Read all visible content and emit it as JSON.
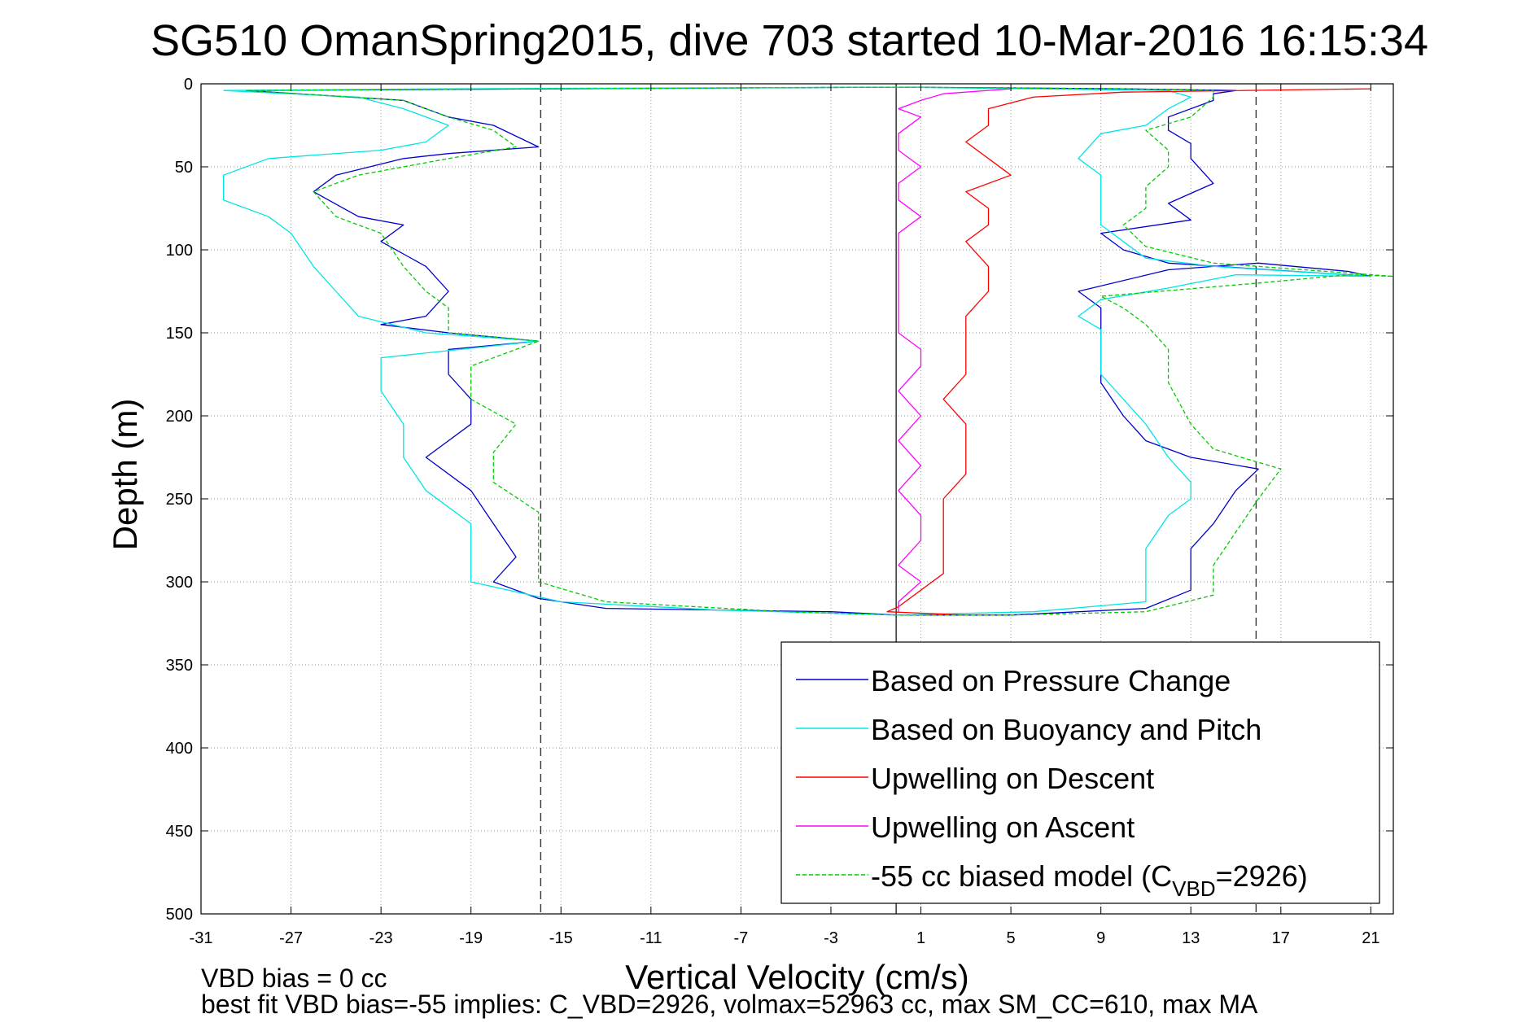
{
  "chart_data": {
    "type": "line",
    "title": "SG510 OmanSpring2015, dive 703 started 10-Mar-2016 16:15:34",
    "xlabel": "Vertical Velocity (cm/s)",
    "ylabel": "Depth (m)",
    "xlim": [
      -31,
      22
    ],
    "ylim": [
      500,
      0
    ],
    "xticks": [
      -31,
      -27,
      -23,
      -19,
      -15,
      -11,
      -7,
      -3,
      1,
      5,
      9,
      13,
      17,
      21
    ],
    "yticks": [
      0,
      50,
      100,
      150,
      200,
      250,
      300,
      350,
      400,
      450,
      500
    ],
    "grid": true,
    "legend_position": "bottom-right",
    "reference_lines": {
      "vertical_solid": [
        -0.1
      ],
      "vertical_dashed": [
        -15.9,
        15.9
      ]
    },
    "series": [
      {
        "name": "Based on Pressure Change",
        "color": "#0000cc",
        "style": "solid",
        "points": [
          [
            -29,
            4
          ],
          [
            -22,
            10
          ],
          [
            -20,
            20
          ],
          [
            -18,
            25
          ],
          [
            -16,
            38
          ],
          [
            -20,
            42
          ],
          [
            -22,
            45
          ],
          [
            -25,
            55
          ],
          [
            -26,
            65
          ],
          [
            -24,
            80
          ],
          [
            -22,
            85
          ],
          [
            -23,
            95
          ],
          [
            -21,
            110
          ],
          [
            -20,
            125
          ],
          [
            -21,
            140
          ],
          [
            -23,
            145
          ],
          [
            -20,
            150
          ],
          [
            -16,
            155
          ],
          [
            -20,
            160
          ],
          [
            -20,
            175
          ],
          [
            -19,
            190
          ],
          [
            -19,
            205
          ],
          [
            -21,
            225
          ],
          [
            -19,
            245
          ],
          [
            -18,
            265
          ],
          [
            -17,
            285
          ],
          [
            -18,
            300
          ],
          [
            -16,
            310
          ],
          [
            -13,
            316
          ],
          [
            -3,
            318
          ],
          [
            0,
            320
          ],
          [
            5,
            320
          ],
          [
            11,
            316
          ],
          [
            13,
            305
          ],
          [
            13,
            280
          ],
          [
            14,
            265
          ],
          [
            15,
            245
          ],
          [
            16,
            232
          ],
          [
            13,
            225
          ],
          [
            11,
            215
          ],
          [
            10,
            200
          ],
          [
            9,
            180
          ],
          [
            9,
            160
          ],
          [
            9,
            145
          ],
          [
            9,
            135
          ],
          [
            8,
            125
          ],
          [
            12,
            112
          ],
          [
            16,
            108
          ],
          [
            20,
            113
          ],
          [
            21,
            116
          ],
          [
            12,
            108
          ],
          [
            10,
            100
          ],
          [
            9,
            90
          ],
          [
            13,
            82
          ],
          [
            12,
            72
          ],
          [
            14,
            60
          ],
          [
            13,
            45
          ],
          [
            13,
            36
          ],
          [
            12,
            28
          ],
          [
            12,
            20
          ],
          [
            14,
            10
          ],
          [
            14,
            6
          ],
          [
            15,
            4
          ],
          [
            10,
            3
          ],
          [
            0,
            2
          ],
          [
            -15,
            3
          ],
          [
            -29,
            4
          ]
        ]
      },
      {
        "name": "Based on Buoyancy and Pitch",
        "color": "#00e5e5",
        "style": "solid",
        "points": [
          [
            -30,
            4
          ],
          [
            -24,
            8
          ],
          [
            -22,
            15
          ],
          [
            -20,
            25
          ],
          [
            -21,
            35
          ],
          [
            -23,
            40
          ],
          [
            -28,
            45
          ],
          [
            -30,
            55
          ],
          [
            -30,
            70
          ],
          [
            -28,
            80
          ],
          [
            -27,
            90
          ],
          [
            -26,
            110
          ],
          [
            -25,
            125
          ],
          [
            -24,
            140
          ],
          [
            -21,
            150
          ],
          [
            -16,
            155
          ],
          [
            -23,
            165
          ],
          [
            -23,
            185
          ],
          [
            -22,
            205
          ],
          [
            -22,
            225
          ],
          [
            -21,
            245
          ],
          [
            -19,
            265
          ],
          [
            -19,
            285
          ],
          [
            -19,
            300
          ],
          [
            -15,
            312
          ],
          [
            -8,
            317
          ],
          [
            0,
            320
          ],
          [
            6,
            318
          ],
          [
            11,
            312
          ],
          [
            11,
            300
          ],
          [
            11,
            280
          ],
          [
            12,
            260
          ],
          [
            13,
            250
          ],
          [
            13,
            240
          ],
          [
            12,
            225
          ],
          [
            11,
            205
          ],
          [
            10,
            190
          ],
          [
            9,
            175
          ],
          [
            9,
            160
          ],
          [
            9,
            148
          ],
          [
            8,
            140
          ],
          [
            9,
            130
          ],
          [
            12,
            123
          ],
          [
            15,
            115
          ],
          [
            21,
            116
          ],
          [
            14,
            110
          ],
          [
            11,
            105
          ],
          [
            10,
            95
          ],
          [
            9,
            85
          ],
          [
            9,
            70
          ],
          [
            9,
            55
          ],
          [
            8,
            45
          ],
          [
            9,
            30
          ],
          [
            11,
            25
          ],
          [
            12,
            15
          ],
          [
            13,
            8
          ],
          [
            12,
            4
          ],
          [
            0,
            2
          ],
          [
            -20,
            3
          ],
          [
            -30,
            4
          ]
        ]
      },
      {
        "name": "Upwelling on Descent",
        "color": "#ff0000",
        "style": "solid",
        "points": [
          [
            21,
            3
          ],
          [
            10,
            5
          ],
          [
            6,
            8
          ],
          [
            4,
            15
          ],
          [
            4,
            25
          ],
          [
            3,
            35
          ],
          [
            4,
            45
          ],
          [
            5,
            55
          ],
          [
            3,
            65
          ],
          [
            4,
            75
          ],
          [
            4,
            85
          ],
          [
            3,
            95
          ],
          [
            4,
            110
          ],
          [
            4,
            125
          ],
          [
            3,
            140
          ],
          [
            3,
            150
          ],
          [
            3,
            160
          ],
          [
            3,
            175
          ],
          [
            2,
            190
          ],
          [
            3,
            205
          ],
          [
            3,
            220
          ],
          [
            3,
            235
          ],
          [
            2,
            250
          ],
          [
            2,
            265
          ],
          [
            2,
            280
          ],
          [
            2,
            295
          ],
          [
            1,
            305
          ],
          [
            0,
            315
          ],
          [
            -0.5,
            318
          ],
          [
            3,
            320
          ]
        ]
      },
      {
        "name": "Upwelling on Ascent",
        "color": "#ff00ff",
        "style": "solid",
        "points": [
          [
            5,
            3
          ],
          [
            2,
            6
          ],
          [
            1,
            10
          ],
          [
            0,
            15
          ],
          [
            1,
            20
          ],
          [
            0,
            30
          ],
          [
            0,
            40
          ],
          [
            1,
            50
          ],
          [
            0,
            60
          ],
          [
            0,
            70
          ],
          [
            1,
            80
          ],
          [
            0,
            90
          ],
          [
            0,
            100
          ],
          [
            0,
            110
          ],
          [
            0,
            125
          ],
          [
            0,
            140
          ],
          [
            0,
            150
          ],
          [
            1,
            160
          ],
          [
            1,
            170
          ],
          [
            0,
            185
          ],
          [
            1,
            200
          ],
          [
            0,
            215
          ],
          [
            1,
            230
          ],
          [
            0,
            245
          ],
          [
            1,
            260
          ],
          [
            1,
            275
          ],
          [
            0,
            290
          ],
          [
            1,
            300
          ],
          [
            0,
            312
          ],
          [
            0,
            318
          ]
        ]
      },
      {
        "name": "-55 cc biased model (C_VBD=2926)",
        "color": "#00cc00",
        "style": "dashed",
        "points": [
          [
            -29,
            4
          ],
          [
            -22,
            10
          ],
          [
            -20,
            20
          ],
          [
            -18,
            28
          ],
          [
            -17,
            38
          ],
          [
            -20,
            45
          ],
          [
            -24,
            55
          ],
          [
            -26,
            65
          ],
          [
            -25,
            80
          ],
          [
            -23,
            90
          ],
          [
            -22,
            110
          ],
          [
            -21,
            125
          ],
          [
            -20,
            135
          ],
          [
            -20,
            150
          ],
          [
            -16,
            155
          ],
          [
            -19,
            170
          ],
          [
            -19,
            190
          ],
          [
            -17,
            205
          ],
          [
            -18,
            222
          ],
          [
            -18,
            240
          ],
          [
            -16,
            258
          ],
          [
            -16,
            280
          ],
          [
            -16,
            300
          ],
          [
            -13,
            312
          ],
          [
            -5,
            318
          ],
          [
            0,
            320
          ],
          [
            5,
            320
          ],
          [
            11,
            318
          ],
          [
            14,
            308
          ],
          [
            14,
            290
          ],
          [
            15,
            270
          ],
          [
            16,
            250
          ],
          [
            17,
            232
          ],
          [
            14,
            220
          ],
          [
            13,
            205
          ],
          [
            12,
            180
          ],
          [
            12,
            160
          ],
          [
            11,
            145
          ],
          [
            10,
            135
          ],
          [
            9,
            128
          ],
          [
            16,
            120
          ],
          [
            20,
            115
          ],
          [
            22,
            116
          ],
          [
            14,
            108
          ],
          [
            11,
            98
          ],
          [
            10,
            85
          ],
          [
            11,
            75
          ],
          [
            11,
            62
          ],
          [
            12,
            50
          ],
          [
            12,
            40
          ],
          [
            11,
            28
          ],
          [
            13,
            20
          ],
          [
            14,
            8
          ],
          [
            14,
            4
          ],
          [
            10,
            3
          ],
          [
            0,
            2
          ],
          [
            -15,
            3
          ],
          [
            -29,
            4
          ]
        ]
      }
    ],
    "legend": [
      {
        "label": "Based on Pressure Change",
        "color": "#0000cc",
        "dashed": false
      },
      {
        "label": "Based on Buoyancy and Pitch",
        "color": "#00e5e5",
        "dashed": false
      },
      {
        "label": "Upwelling on Descent",
        "color": "#ff0000",
        "dashed": false
      },
      {
        "label": "Upwelling on Ascent",
        "color": "#ff00ff",
        "dashed": false
      },
      {
        "label_main": "-55 cc biased model (C",
        "label_sub": "VBD",
        "label_end": "=2926)",
        "color": "#00cc00",
        "dashed": true
      }
    ],
    "footer": {
      "line1": "VBD bias = 0 cc",
      "line2": "best fit VBD bias=-55 implies: C_VBD=2926, volmax=52963 cc, max SM_CC=610, max MA"
    }
  }
}
